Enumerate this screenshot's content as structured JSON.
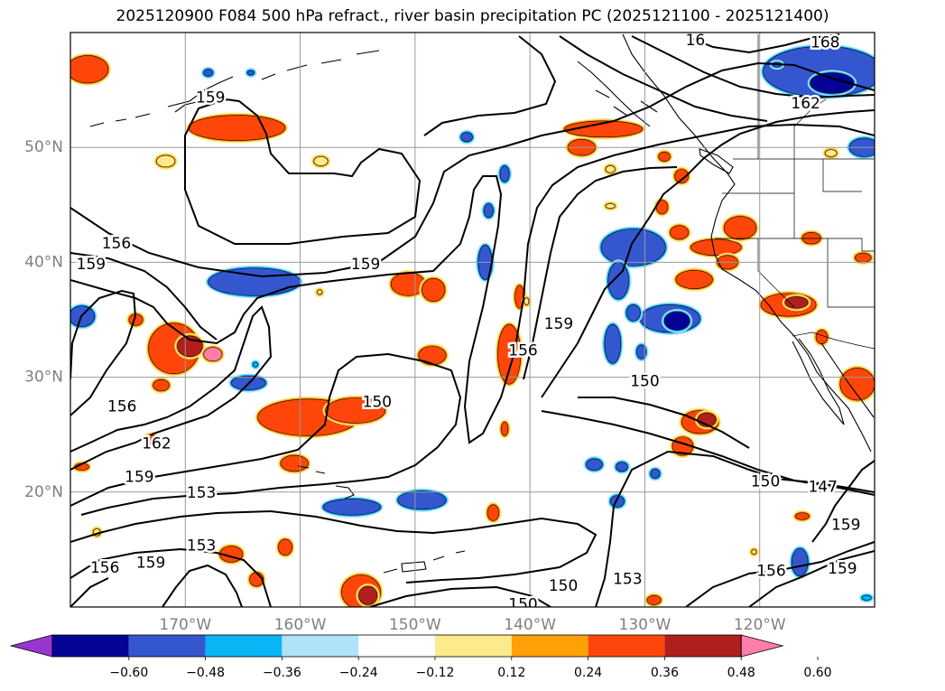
{
  "title": "2025120900 F084 500 hPa refract., river basin precipitation PC (2025121100 - 2025121400)",
  "map": {
    "lon_range": [
      -180,
      -110
    ],
    "lat_range": [
      10,
      60
    ],
    "lat_labels": [
      {
        "lat": 50,
        "text": "50°N"
      },
      {
        "lat": 40,
        "text": "40°N"
      },
      {
        "lat": 30,
        "text": "30°N"
      },
      {
        "lat": 20,
        "text": "20°N"
      }
    ],
    "lon_labels": [
      {
        "lon": -170,
        "text": "170°W"
      },
      {
        "lon": -160,
        "text": "160°W"
      },
      {
        "lon": -150,
        "text": "150°W"
      },
      {
        "lon": -140,
        "text": "140°W"
      },
      {
        "lon": -130,
        "text": "130°W"
      },
      {
        "lon": -120,
        "text": "120°W"
      }
    ],
    "gridlines": true,
    "contour_labels": [
      {
        "text": "159",
        "lon": -178.2,
        "lat": 39.8
      },
      {
        "text": "156",
        "lon": -176,
        "lat": 41.6
      },
      {
        "text": "159",
        "lon": -167.8,
        "lat": 54.3
      },
      {
        "text": "159",
        "lon": -154.3,
        "lat": 39.8
      },
      {
        "text": "156",
        "lon": -175.5,
        "lat": 27.4
      },
      {
        "text": "162",
        "lon": -172.5,
        "lat": 24.2
      },
      {
        "text": "159",
        "lon": -174,
        "lat": 21.3
      },
      {
        "text": "153",
        "lon": -168.6,
        "lat": 19.9
      },
      {
        "text": "153",
        "lon": -168.6,
        "lat": 15.3
      },
      {
        "text": "159",
        "lon": -173,
        "lat": 13.8
      },
      {
        "text": "156",
        "lon": -177,
        "lat": 13.4
      },
      {
        "text": "150",
        "lon": -153.3,
        "lat": 27.8
      },
      {
        "text": "156",
        "lon": -140.6,
        "lat": 32.3
      },
      {
        "text": "159",
        "lon": -137.5,
        "lat": 34.6
      },
      {
        "text": "150",
        "lon": -137.1,
        "lat": 11.8
      },
      {
        "text": "150",
        "lon": -140.6,
        "lat": 10.2
      },
      {
        "text": "153",
        "lon": -131.5,
        "lat": 12.4
      },
      {
        "text": "150",
        "lon": -130,
        "lat": 29.6
      },
      {
        "text": "150",
        "lon": -119.5,
        "lat": 20.9
      },
      {
        "text": "147",
        "lon": -114.5,
        "lat": 20.4
      },
      {
        "text": "156",
        "lon": -119,
        "lat": 13.1
      },
      {
        "text": "159",
        "lon": -112.8,
        "lat": 13.3
      },
      {
        "text": "159",
        "lon": -112.5,
        "lat": 17.1
      },
      {
        "text": "162",
        "lon": -116,
        "lat": 53.8
      },
      {
        "text": "168",
        "lon": -114.3,
        "lat": 59.1
      },
      {
        "text": "16",
        "lon": -125.6,
        "lat": 59.3
      }
    ],
    "precip_blobs": [
      {
        "lon": -178.5,
        "lat": 56.8,
        "rx": 1.8,
        "ry": 1.2,
        "level": 0.36
      },
      {
        "lon": -165.5,
        "lat": 51.7,
        "rx": 4.2,
        "ry": 1.1,
        "level": 0.36
      },
      {
        "lon": -171.7,
        "lat": 48.8,
        "rx": 0.8,
        "ry": 0.5,
        "level": 0.24
      },
      {
        "lon": -164,
        "lat": 38.3,
        "rx": 4,
        "ry": 1.2,
        "level": -0.36
      },
      {
        "lon": -158.2,
        "lat": 48.8,
        "rx": 0.6,
        "ry": 0.4,
        "level": 0.24
      },
      {
        "lon": -150.6,
        "lat": 38.1,
        "rx": 1.5,
        "ry": 1,
        "level": 0.36
      },
      {
        "lon": -148.4,
        "lat": 37.6,
        "rx": 1,
        "ry": 1,
        "level": 0.36
      },
      {
        "lon": -179,
        "lat": 35.3,
        "rx": 1.1,
        "ry": 0.9,
        "level": -0.36
      },
      {
        "lon": -171,
        "lat": 32.5,
        "rx": 2.2,
        "ry": 2.2,
        "level": 0.36
      },
      {
        "lon": -169.6,
        "lat": 32.7,
        "rx": 1.1,
        "ry": 0.9,
        "level": 0.48
      },
      {
        "lon": -167.6,
        "lat": 32,
        "rx": 0.8,
        "ry": 0.6,
        "level": 0.6
      },
      {
        "lon": -174.3,
        "lat": 35,
        "rx": 0.6,
        "ry": 0.5,
        "level": 0.36
      },
      {
        "lon": -172.1,
        "lat": 29.3,
        "rx": 0.7,
        "ry": 0.5,
        "level": 0.36
      },
      {
        "lon": -164.5,
        "lat": 29.5,
        "rx": 1.5,
        "ry": 0.6,
        "level": -0.36
      },
      {
        "lon": -148.5,
        "lat": 31.9,
        "rx": 1.2,
        "ry": 0.8,
        "level": 0.36
      },
      {
        "lon": -159.3,
        "lat": 26.5,
        "rx": 4.4,
        "ry": 1.6,
        "level": 0.36
      },
      {
        "lon": -155.2,
        "lat": 27.1,
        "rx": 2.6,
        "ry": 1.1,
        "level": 0.36
      },
      {
        "lon": -160.5,
        "lat": 22.5,
        "rx": 1.2,
        "ry": 0.7,
        "level": 0.36
      },
      {
        "lon": -149.4,
        "lat": 19.3,
        "rx": 2.1,
        "ry": 0.8,
        "level": -0.36
      },
      {
        "lon": -155.5,
        "lat": 18.7,
        "rx": 2.5,
        "ry": 0.7,
        "level": -0.36
      },
      {
        "lon": -154.7,
        "lat": 11.3,
        "rx": 1.7,
        "ry": 1.5,
        "level": 0.36
      },
      {
        "lon": -154.1,
        "lat": 11,
        "rx": 0.8,
        "ry": 0.8,
        "level": 0.48
      },
      {
        "lon": -161.3,
        "lat": 15.2,
        "rx": 0.6,
        "ry": 0.7,
        "level": 0.36
      },
      {
        "lon": -166,
        "lat": 14.6,
        "rx": 1,
        "ry": 0.7,
        "level": 0.36
      },
      {
        "lon": -163.8,
        "lat": 12.4,
        "rx": 0.6,
        "ry": 0.6,
        "level": 0.36
      },
      {
        "lon": -177.7,
        "lat": 16.5,
        "rx": 0.3,
        "ry": 0.3,
        "level": 0.24
      },
      {
        "lon": -179,
        "lat": 22.2,
        "rx": 0.6,
        "ry": 0.3,
        "level": 0.36
      },
      {
        "lon": -173,
        "lat": 24.6,
        "rx": 0.5,
        "ry": 0.4,
        "level": 0.36
      },
      {
        "lon": -141.8,
        "lat": 32,
        "rx": 1,
        "ry": 2.6,
        "level": 0.36
      },
      {
        "lon": -140.9,
        "lat": 37,
        "rx": 0.4,
        "ry": 1,
        "level": 0.36
      },
      {
        "lon": -143.9,
        "lat": 40,
        "rx": 0.6,
        "ry": 1.5,
        "level": -0.36
      },
      {
        "lon": -143.6,
        "lat": 44.5,
        "rx": 0.4,
        "ry": 0.6,
        "level": -0.36
      },
      {
        "lon": -142.2,
        "lat": 47.7,
        "rx": 0.4,
        "ry": 0.7,
        "level": -0.36
      },
      {
        "lon": -142.2,
        "lat": 25.5,
        "rx": 0.3,
        "ry": 0.6,
        "level": 0.36
      },
      {
        "lon": -143.2,
        "lat": 18.2,
        "rx": 0.5,
        "ry": 0.7,
        "level": 0.36
      },
      {
        "lon": -145.5,
        "lat": 50.9,
        "rx": 0.5,
        "ry": 0.4,
        "level": -0.36
      },
      {
        "lon": -131,
        "lat": 41.3,
        "rx": 2.8,
        "ry": 1.6,
        "level": -0.36
      },
      {
        "lon": -132.3,
        "lat": 38.4,
        "rx": 0.9,
        "ry": 1.6,
        "level": -0.36
      },
      {
        "lon": -127.8,
        "lat": 35.1,
        "rx": 2.6,
        "ry": 1.2,
        "level": -0.36
      },
      {
        "lon": -127.2,
        "lat": 34.9,
        "rx": 1.1,
        "ry": 0.8,
        "level": -0.48
      },
      {
        "lon": -132.8,
        "lat": 32.9,
        "rx": 0.7,
        "ry": 1.7,
        "level": -0.36
      },
      {
        "lon": -131,
        "lat": 35.6,
        "rx": 0.6,
        "ry": 0.7,
        "level": -0.36
      },
      {
        "lon": -130.3,
        "lat": 32.2,
        "rx": 0.4,
        "ry": 0.6,
        "level": -0.36
      },
      {
        "lon": -133.6,
        "lat": 51.6,
        "rx": 3.4,
        "ry": 0.7,
        "level": 0.36
      },
      {
        "lon": -135.5,
        "lat": 50,
        "rx": 1.2,
        "ry": 0.7,
        "level": 0.36
      },
      {
        "lon": -128.5,
        "lat": 44.8,
        "rx": 0.5,
        "ry": 0.6,
        "level": 0.36
      },
      {
        "lon": -126.8,
        "lat": 47.5,
        "rx": 0.6,
        "ry": 0.6,
        "level": 0.36
      },
      {
        "lon": -128.3,
        "lat": 49.2,
        "rx": 0.5,
        "ry": 0.4,
        "level": 0.36
      },
      {
        "lon": -127,
        "lat": 42.6,
        "rx": 0.8,
        "ry": 0.6,
        "level": 0.36
      },
      {
        "lon": -125.7,
        "lat": 38.5,
        "rx": 1.6,
        "ry": 0.8,
        "level": 0.36
      },
      {
        "lon": -123.8,
        "lat": 41.3,
        "rx": 2.2,
        "ry": 0.7,
        "level": 0.36
      },
      {
        "lon": -121.7,
        "lat": 43,
        "rx": 1.4,
        "ry": 1,
        "level": 0.36
      },
      {
        "lon": -122.8,
        "lat": 40,
        "rx": 0.9,
        "ry": 0.6,
        "level": 0.36
      },
      {
        "lon": -117.5,
        "lat": 36.3,
        "rx": 2.4,
        "ry": 1,
        "level": 0.36
      },
      {
        "lon": -116.8,
        "lat": 36.5,
        "rx": 1,
        "ry": 0.5,
        "level": 0.48
      },
      {
        "lon": -115.5,
        "lat": 42.1,
        "rx": 0.8,
        "ry": 0.5,
        "level": 0.36
      },
      {
        "lon": -111,
        "lat": 40.4,
        "rx": 0.7,
        "ry": 0.4,
        "level": 0.36
      },
      {
        "lon": -114.6,
        "lat": 33.5,
        "rx": 0.5,
        "ry": 0.6,
        "level": 0.36
      },
      {
        "lon": -111.5,
        "lat": 29.4,
        "rx": 1.5,
        "ry": 1.4,
        "level": 0.36
      },
      {
        "lon": -125.2,
        "lat": 26.1,
        "rx": 1.6,
        "ry": 1,
        "level": 0.36
      },
      {
        "lon": -124.6,
        "lat": 26.3,
        "rx": 0.8,
        "ry": 0.6,
        "level": 0.48
      },
      {
        "lon": -126.7,
        "lat": 24,
        "rx": 0.9,
        "ry": 0.8,
        "level": 0.36
      },
      {
        "lon": -114.5,
        "lat": 56.6,
        "rx": 5.2,
        "ry": 2.2,
        "level": -0.36
      },
      {
        "lon": -113.7,
        "lat": 55.6,
        "rx": 1.9,
        "ry": 0.9,
        "level": -0.48
      },
      {
        "lon": -110.9,
        "lat": 50,
        "rx": 1.3,
        "ry": 0.8,
        "level": -0.36
      },
      {
        "lon": -118.5,
        "lat": 57.2,
        "rx": 0.4,
        "ry": 0.2,
        "level": -0.36
      },
      {
        "lon": -113.8,
        "lat": 49.5,
        "rx": 0.5,
        "ry": 0.3,
        "level": 0.24
      },
      {
        "lon": -133,
        "lat": 48.1,
        "rx": 0.4,
        "ry": 0.3,
        "level": 0.24
      },
      {
        "lon": -133,
        "lat": 44.9,
        "rx": 0.4,
        "ry": 0.2,
        "level": 0.24
      },
      {
        "lon": -134.4,
        "lat": 22.4,
        "rx": 0.7,
        "ry": 0.5,
        "level": -0.36
      },
      {
        "lon": -132,
        "lat": 22.2,
        "rx": 0.5,
        "ry": 0.4,
        "level": -0.36
      },
      {
        "lon": -129.1,
        "lat": 21.6,
        "rx": 0.4,
        "ry": 0.4,
        "level": -0.36
      },
      {
        "lon": -132.4,
        "lat": 19.2,
        "rx": 0.6,
        "ry": 0.5,
        "level": -0.36
      },
      {
        "lon": -129.2,
        "lat": 10.6,
        "rx": 0.6,
        "ry": 0.4,
        "level": 0.36
      },
      {
        "lon": -116.3,
        "lat": 17.9,
        "rx": 0.6,
        "ry": 0.3,
        "level": 0.36
      },
      {
        "lon": -116.5,
        "lat": 13.9,
        "rx": 0.7,
        "ry": 1.2,
        "level": -0.36
      },
      {
        "lon": -120.5,
        "lat": 14.8,
        "rx": 0.2,
        "ry": 0.2,
        "level": 0.24
      },
      {
        "lon": -110.7,
        "lat": 10.8,
        "rx": 0.4,
        "ry": 0.2,
        "level": -0.24
      },
      {
        "lon": -168,
        "lat": 56.5,
        "rx": 0.4,
        "ry": 0.3,
        "level": -0.36
      },
      {
        "lon": -164.3,
        "lat": 56.5,
        "rx": 0.3,
        "ry": 0.2,
        "level": -0.36
      },
      {
        "lon": -140.3,
        "lat": 36.6,
        "rx": 0.2,
        "ry": 0.3,
        "level": 0.24
      },
      {
        "lon": -158.3,
        "lat": 37.4,
        "rx": 0.2,
        "ry": 0.2,
        "level": 0.24
      },
      {
        "lon": -163.9,
        "lat": 31.1,
        "rx": 0.2,
        "ry": 0.2,
        "level": -0.24
      }
    ]
  },
  "colorbar": {
    "colors": [
      "#9a36d0",
      "#050396",
      "#3457d0",
      "#0ab5f6",
      "#b0e2fa",
      "#ffffff",
      "#fdea8c",
      "#fea107",
      "#fe460a",
      "#b01e1e",
      "#fe7eaa"
    ],
    "ticks": [
      "−0.60",
      "−0.48",
      "−0.36",
      "−0.24",
      "−0.12",
      "0.12",
      "0.24",
      "0.36",
      "0.48",
      "0.60"
    ]
  }
}
